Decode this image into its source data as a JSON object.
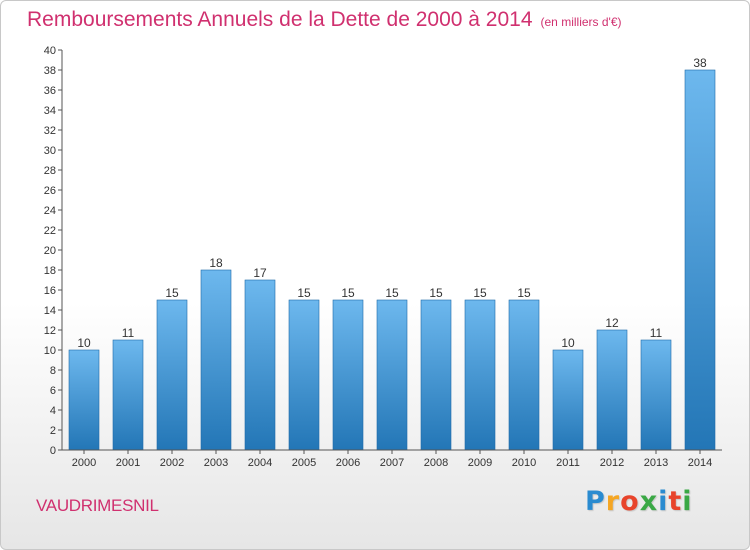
{
  "chart_data": {
    "type": "bar",
    "title": "Remboursements Annuels de la Dette de 2000 à 2014",
    "subtitle": "(en milliers d'€)",
    "categories": [
      "2000",
      "2001",
      "2002",
      "2003",
      "2004",
      "2005",
      "2006",
      "2007",
      "2008",
      "2009",
      "2010",
      "2011",
      "2012",
      "2013",
      "2014"
    ],
    "values": [
      10,
      11,
      15,
      18,
      17,
      15,
      15,
      15,
      15,
      15,
      15,
      10,
      12,
      11,
      38
    ],
    "ylim": [
      0,
      40
    ],
    "yticks": [
      0,
      2,
      4,
      6,
      8,
      10,
      12,
      14,
      16,
      18,
      20,
      22,
      24,
      26,
      28,
      30,
      32,
      34,
      36,
      38,
      40
    ],
    "grid": false,
    "colors": {
      "bar_light": "#6db8ee",
      "bar_dark": "#2376b6",
      "bar_edge": "#1f6aa8",
      "axis": "#555555"
    }
  },
  "footer": {
    "town": "VAUDRIMESNIL",
    "logo_letters": [
      "P",
      "r",
      "o",
      "x",
      "i",
      "t",
      "i"
    ],
    "logo_colors": [
      "#2a8bd0",
      "#f5a623",
      "#e8442b",
      "#3aa845",
      "#2a8bd0",
      "#e8442b",
      "#3aa845"
    ]
  }
}
